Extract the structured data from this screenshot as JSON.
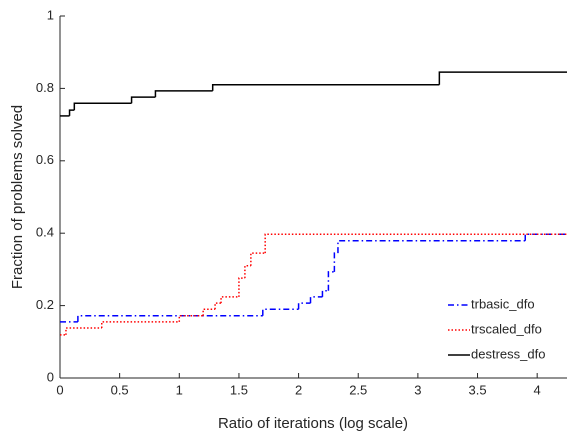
{
  "chart_data": {
    "type": "step",
    "x_label": "Ratio of iterations (log scale)",
    "y_label": "Fraction of problems solved",
    "xlim": [
      0,
      4.25
    ],
    "ylim": [
      0,
      1
    ],
    "xticks": [
      0,
      0.5,
      1,
      1.5,
      2,
      2.5,
      3,
      3.5,
      4
    ],
    "yticks": [
      0,
      0.2,
      0.4,
      0.6,
      0.8,
      1
    ],
    "legend": "lower right",
    "series": [
      {
        "name": "trbasic_dfo",
        "color": "#0000ff",
        "dash": "dashdot",
        "x": [
          0,
          0.15,
          1.7,
          2.0,
          2.1,
          2.2,
          2.25,
          2.3,
          2.33,
          3.9
        ],
        "values": [
          0.155,
          0.172,
          0.19,
          0.207,
          0.224,
          0.241,
          0.293,
          0.345,
          0.379,
          0.397
        ]
      },
      {
        "name": "trscaled_dfo",
        "color": "#ff0000",
        "dash": "dotted",
        "x": [
          0,
          0.05,
          0.35,
          1.0,
          1.2,
          1.3,
          1.35,
          1.5,
          1.55,
          1.6,
          1.72
        ],
        "values": [
          0.119,
          0.138,
          0.155,
          0.172,
          0.19,
          0.207,
          0.224,
          0.276,
          0.31,
          0.345,
          0.397
        ]
      },
      {
        "name": "destress_dfo",
        "color": "#000000",
        "dash": "solid",
        "x": [
          0,
          0.08,
          0.12,
          0.6,
          0.8,
          1.28,
          3.18
        ],
        "values": [
          0.724,
          0.74,
          0.759,
          0.776,
          0.793,
          0.81,
          0.845
        ]
      }
    ]
  }
}
